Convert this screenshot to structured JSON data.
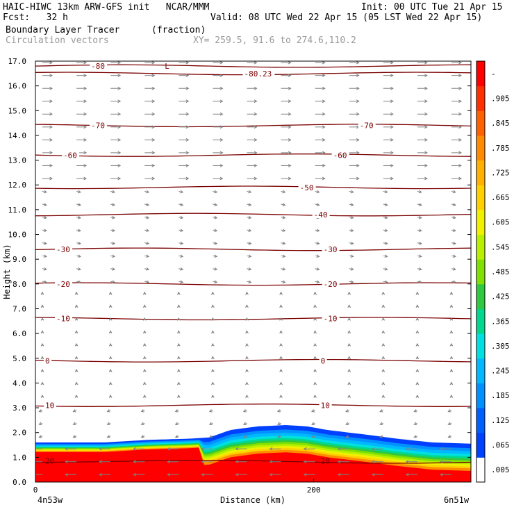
{
  "header": {
    "model_line": "HAIC-HIWC 13km ARW-GFS init   NCAR/MMM",
    "fcst_line": "Fcst:   32 h",
    "init_line": "Init: 00 UTC Tue 21 Apr 15",
    "valid_line": "Valid: 08 UTC Wed 22 Apr 15 (05 LST Wed 22 Apr 15)",
    "field_name": "Boundary Layer Tracer",
    "field_units": "(fraction)",
    "overlay_name": "Circulation vectors",
    "xy_line": "XY= 259.5, 91.6 to 274.6,110.2"
  },
  "chart_data": {
    "type": "heatmap",
    "title": "Boundary Layer Tracer",
    "xlabel": "Distance (km)",
    "ylabel": "Height (km)",
    "xlim": [
      0,
      313
    ],
    "ylim": [
      0,
      17
    ],
    "x_ticks": [
      {
        "value": 0,
        "label": "0"
      },
      {
        "value": 200,
        "label": "200"
      }
    ],
    "x_endpoints": {
      "left": "4n53w",
      "right": "6n51w"
    },
    "y_ticks": [
      "0.0",
      "1.0",
      "2.0",
      "3.0",
      "4.0",
      "5.0",
      "6.0",
      "7.0",
      "8.0",
      "9.0",
      "10.0",
      "11.0",
      "12.0",
      "13.0",
      "14.0",
      "15.0",
      "16.0",
      "17.0"
    ],
    "colorbar": {
      "labels": [
        ".005",
        ".065",
        ".125",
        ".185",
        ".245",
        ".305",
        ".365",
        ".425",
        ".485",
        ".545",
        ".605",
        ".665",
        ".725",
        ".785",
        ".845",
        ".905",
        "-"
      ],
      "colors": [
        "#ffffff",
        "#0040ff",
        "#0060ff",
        "#0090ff",
        "#00b8ff",
        "#00e0e0",
        "#00d890",
        "#30c840",
        "#80e000",
        "#b8f000",
        "#f0f000",
        "#ffd000",
        "#ffb000",
        "#ff8c00",
        "#ff6000",
        "#ff3000",
        "#ff0000"
      ]
    },
    "tracer_top_km": [
      [
        0,
        1.6
      ],
      [
        20,
        1.6
      ],
      [
        50,
        1.6
      ],
      [
        80,
        1.7
      ],
      [
        110,
        1.75
      ],
      [
        125,
        1.8
      ],
      [
        140,
        2.1
      ],
      [
        160,
        2.25
      ],
      [
        180,
        2.3
      ],
      [
        195,
        2.25
      ],
      [
        210,
        2.1
      ],
      [
        240,
        1.9
      ],
      [
        260,
        1.75
      ],
      [
        285,
        1.6
      ],
      [
        313,
        1.55
      ]
    ],
    "temperature_contours_c": [
      {
        "value": -80,
        "label": "-80",
        "height_km": 16.8
      },
      {
        "value": -80.23,
        "label": "-80.23",
        "height_km": 16.5
      },
      {
        "value": -70,
        "label": "-70",
        "height_km": 14.4
      },
      {
        "value": -60,
        "label": "-60",
        "height_km": 13.2
      },
      {
        "value": -50,
        "label": "-50",
        "height_km": 11.9
      },
      {
        "value": -40,
        "label": "-40",
        "height_km": 10.8
      },
      {
        "value": -30,
        "label": "-30",
        "height_km": 9.4
      },
      {
        "value": -20,
        "label": "-20",
        "height_km": 8.0
      },
      {
        "value": -10,
        "label": "-10",
        "height_km": 6.6
      },
      {
        "value": 0,
        "label": "0",
        "height_km": 4.9
      },
      {
        "value": 10,
        "label": "10",
        "height_km": 3.1
      },
      {
        "value": 20,
        "label": "20",
        "height_km": 0.85
      }
    ],
    "low_marker": "L",
    "grid": false
  }
}
